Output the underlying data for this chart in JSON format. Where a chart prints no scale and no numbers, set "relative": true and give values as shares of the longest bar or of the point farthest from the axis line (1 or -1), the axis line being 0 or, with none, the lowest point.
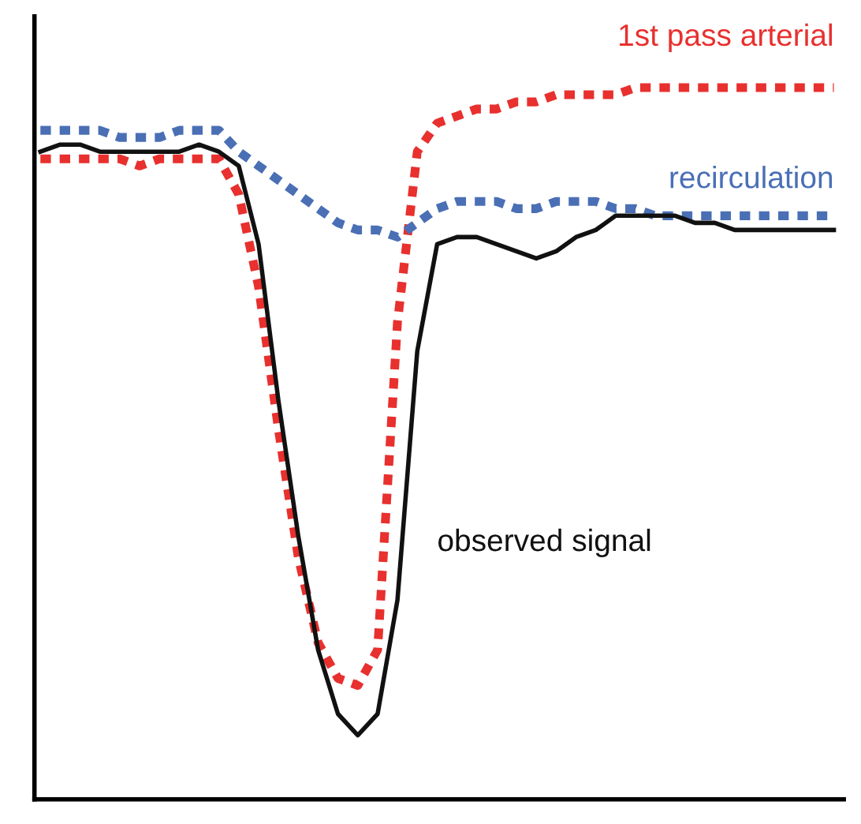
{
  "chart_data": {
    "type": "line",
    "relative": true,
    "legend": false,
    "categories": [
      null,
      null,
      null,
      null,
      null,
      null,
      null,
      null,
      null,
      null,
      null,
      null,
      null,
      null,
      null,
      null,
      null,
      null,
      null,
      null,
      null,
      null,
      null,
      null,
      null,
      null,
      null,
      null,
      null,
      null,
      null,
      null,
      null,
      null,
      null,
      null,
      null,
      null,
      null,
      null,
      null
    ],
    "series": [
      {
        "name": "1st pass arterial",
        "color": "#e8302e",
        "line_style": "dotted",
        "values": [
          0.9,
          0.9,
          0.9,
          0.9,
          0.9,
          0.89,
          0.9,
          0.9,
          0.9,
          0.9,
          0.85,
          0.72,
          0.52,
          0.34,
          0.22,
          0.17,
          0.16,
          0.21,
          0.67,
          0.91,
          0.95,
          0.96,
          0.97,
          0.97,
          0.98,
          0.98,
          0.99,
          0.99,
          0.99,
          0.99,
          1.0,
          1.0,
          1.0,
          1.0,
          1.0,
          1.0,
          1.0,
          1.0,
          1.0,
          1.0,
          1.0
        ]
      },
      {
        "name": "recirculation",
        "color": "#4a6fb5",
        "line_style": "dotted",
        "values": [
          0.94,
          0.94,
          0.94,
          0.94,
          0.93,
          0.93,
          0.93,
          0.94,
          0.94,
          0.94,
          0.91,
          0.89,
          0.87,
          0.85,
          0.83,
          0.81,
          0.8,
          0.8,
          0.79,
          0.81,
          0.83,
          0.84,
          0.84,
          0.84,
          0.83,
          0.83,
          0.84,
          0.84,
          0.84,
          0.83,
          0.83,
          0.82,
          0.82,
          0.82,
          0.82,
          0.82,
          0.82,
          0.82,
          0.82,
          0.82,
          0.82
        ]
      },
      {
        "name": "observed signal",
        "color": "#111111",
        "line_style": "solid",
        "values": [
          0.91,
          0.92,
          0.92,
          0.91,
          0.91,
          0.91,
          0.91,
          0.91,
          0.92,
          0.91,
          0.89,
          0.78,
          0.56,
          0.37,
          0.21,
          0.12,
          0.09,
          0.12,
          0.28,
          0.63,
          0.78,
          0.79,
          0.79,
          0.78,
          0.77,
          0.76,
          0.77,
          0.79,
          0.8,
          0.82,
          0.82,
          0.82,
          0.82,
          0.81,
          0.81,
          0.8,
          0.8,
          0.8,
          0.8,
          0.8,
          0.8
        ]
      }
    ]
  }
}
